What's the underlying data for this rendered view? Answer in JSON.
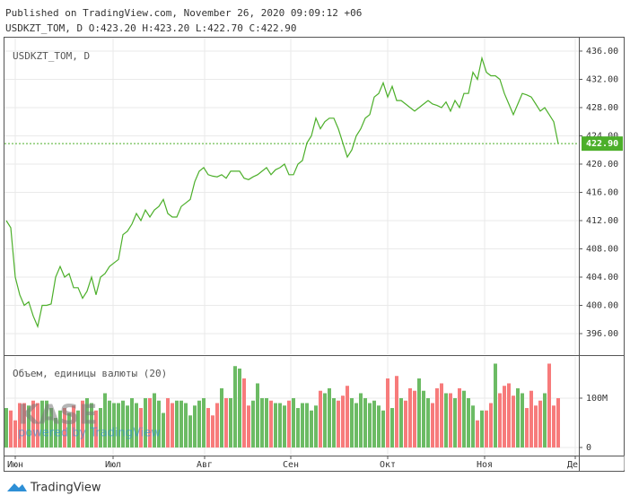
{
  "header": {
    "published": "Published on TradingView.com, November 26, 2020 09:09:12 +06",
    "ohlc": "USDKZT_TOM, D O:423.20 H:423.20 L:422.70 C:422.90"
  },
  "watermark": {
    "logo": "KASE",
    "tagline": "powered by TradingView"
  },
  "footer": {
    "brand": "TradingView"
  },
  "chart_data": [
    {
      "type": "line",
      "title": "USDKZT_TOM, D",
      "color": "#4caf2a",
      "grid": true,
      "values": [
        412,
        411,
        404,
        401.5,
        400,
        400.5,
        398.5,
        397,
        400,
        400,
        400.2,
        404,
        405.5,
        404,
        404.5,
        402.5,
        402.5,
        401,
        402,
        404,
        401.5,
        404,
        404.5,
        405.5,
        406,
        406.5,
        410,
        410.5,
        411.5,
        413,
        412,
        413.5,
        412.5,
        413.5,
        414,
        415,
        413,
        412.5,
        412.5,
        414,
        414.5,
        415,
        417.5,
        419,
        419.5,
        418.5,
        418.3,
        418.2,
        418.5,
        418,
        419,
        419,
        419,
        418,
        417.8,
        418.2,
        418.5,
        419,
        419.5,
        418.5,
        419.2,
        419.5,
        420,
        418.5,
        418.5,
        420,
        420.5,
        423,
        424,
        426.5,
        425,
        426,
        426.5,
        426.5,
        425,
        423,
        421,
        422,
        424,
        425,
        426.5,
        427,
        429.5,
        430,
        431.5,
        429.5,
        431,
        429,
        429,
        428.5,
        428,
        427.5,
        428,
        428.5,
        429,
        428.5,
        428.3,
        428,
        428.8,
        427.5,
        429,
        428,
        430,
        430,
        433,
        432,
        435,
        433,
        432.5,
        432.5,
        432,
        430,
        428.5,
        427,
        428.5,
        430,
        429.8,
        429.5,
        428.5,
        427.5,
        428,
        427,
        426,
        422.9
      ],
      "last_price": {
        "value": 422.9,
        "label": "422.90"
      },
      "xlim": [
        -0.4,
        127.6
      ],
      "ylim": [
        393.08,
        437.9
      ],
      "yticks": [
        {
          "value": 396,
          "label": "396.00"
        },
        {
          "value": 400,
          "label": "400.00"
        },
        {
          "value": 404,
          "label": "404.00"
        },
        {
          "value": 408,
          "label": "408.00"
        },
        {
          "value": 412,
          "label": "412.00"
        },
        {
          "value": 416,
          "label": "416.00"
        },
        {
          "value": 420,
          "label": "420.00"
        },
        {
          "value": 424,
          "label": "424.00"
        },
        {
          "value": 428,
          "label": "428.00"
        },
        {
          "value": 432,
          "label": "432.00"
        },
        {
          "value": 436,
          "label": "436.00"
        }
      ]
    },
    {
      "type": "bar",
      "title": "Объем, единицы валюты (20)",
      "up_color": "#6cbb64",
      "down_color": "#f77b7b",
      "grid": true,
      "values": [
        80000000,
        75000000,
        55000000,
        90000000,
        90000000,
        85000000,
        95000000,
        90000000,
        95000000,
        95000000,
        80000000,
        60000000,
        75000000,
        80000000,
        70000000,
        85000000,
        75000000,
        95000000,
        100000000,
        90000000,
        75000000,
        80000000,
        110000000,
        95000000,
        90000000,
        90000000,
        95000000,
        85000000,
        100000000,
        90000000,
        80000000,
        100000000,
        100000000,
        110000000,
        95000000,
        70000000,
        100000000,
        90000000,
        95000000,
        95000000,
        90000000,
        65000000,
        85000000,
        95000000,
        100000000,
        80000000,
        65000000,
        90000000,
        120000000,
        100000000,
        100000000,
        165000000,
        160000000,
        140000000,
        85000000,
        95000000,
        130000000,
        100000000,
        100000000,
        95000000,
        90000000,
        90000000,
        85000000,
        95000000,
        100000000,
        80000000,
        90000000,
        90000000,
        75000000,
        85000000,
        115000000,
        110000000,
        120000000,
        100000000,
        95000000,
        105000000,
        125000000,
        100000000,
        90000000,
        110000000,
        100000000,
        90000000,
        95000000,
        85000000,
        75000000,
        140000000,
        80000000,
        145000000,
        100000000,
        95000000,
        120000000,
        115000000,
        140000000,
        115000000,
        100000000,
        90000000,
        120000000,
        130000000,
        110000000,
        110000000,
        100000000,
        120000000,
        115000000,
        100000000,
        85000000,
        55000000,
        75000000,
        75000000,
        90000000,
        170000000,
        110000000,
        125000000,
        130000000,
        105000000,
        120000000,
        110000000,
        80000000,
        115000000,
        85000000,
        95000000,
        110000000,
        170000000,
        85000000,
        100000000
      ],
      "xlim": [
        -0.4,
        127.6
      ],
      "ylim": [
        -16400000,
        183600000
      ],
      "yticks": [
        0,
        {
          "value": 100000000,
          "label": "100M"
        }
      ],
      "xticks": [
        {
          "value": 2,
          "label": "Июн"
        },
        {
          "value": 23.8,
          "label": "Июл"
        },
        {
          "value": 44.2,
          "label": "Авг"
        },
        {
          "value": 63.4,
          "label": "Сен"
        },
        {
          "value": 85,
          "label": "Окт"
        },
        {
          "value": 106.6,
          "label": "Ноя"
        },
        {
          "value": 126.8,
          "label": "Дек"
        }
      ]
    }
  ]
}
